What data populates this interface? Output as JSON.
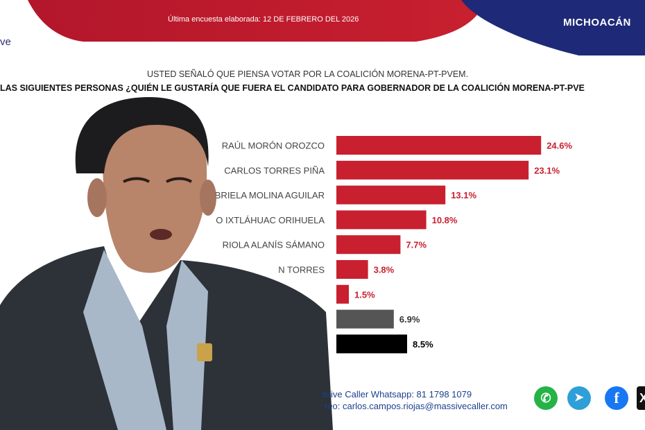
{
  "header": {
    "survey_date": "Última encuesta elaborada: 12 DE FEBRERO DEL 2026",
    "region": "MICHOACÁN",
    "logo_fragment": "ve"
  },
  "question": {
    "line1": "USTED SEÑALÓ QUE PIENSA VOTAR POR LA COALICIÓN MORENA-PT-PVEM.",
    "line2": "LAS SIGUIENTES PERSONAS ¿QUIÉN LE GUSTARÍA QUE FUERA EL CANDIDATO PARA GOBERNADOR DE LA COALICIÓN MORENA-PT-PVE"
  },
  "chart_data": {
    "type": "bar",
    "orientation": "horizontal",
    "categories": [
      "RAÚL MORÓN OROZCO",
      "CARLOS TORRES PIÑA",
      "…BRIELA MOLINA AGUILAR",
      "…O IXTLÁHUAC ORIHUELA",
      "…RIOLA ALANÍS SÁMANO",
      "…N TORRES",
      "",
      "",
      ""
    ],
    "values": [
      24.6,
      23.1,
      13.1,
      10.8,
      7.7,
      3.8,
      1.5,
      6.9,
      8.5
    ],
    "value_labels": [
      "24.6%",
      "23.1%",
      "13.1%",
      "10.8%",
      "7.7%",
      "3.8%",
      "1.5%",
      "6.9%",
      "8.5%"
    ],
    "colors": [
      "#c8202f",
      "#c8202f",
      "#c8202f",
      "#c8202f",
      "#c8202f",
      "#c8202f",
      "#c8202f",
      "#555555",
      "#000000"
    ],
    "label_colors": [
      "#c8202f",
      "#c8202f",
      "#c8202f",
      "#c8202f",
      "#c8202f",
      "#c8202f",
      "#c8202f",
      "#333333",
      "#000000"
    ],
    "xlim": [
      0,
      25
    ],
    "grid": false
  },
  "footer": {
    "whatsapp": "ssive Caller Whatsapp: 81 1798 1079",
    "email": "reo: carlos.campos.riojas@massivecaller.com"
  },
  "icons": [
    "whatsapp-icon",
    "telegram-icon",
    "facebook-icon",
    "x-icon"
  ],
  "colors": {
    "accent_red": "#c8202f",
    "navy": "#1e2a78"
  }
}
